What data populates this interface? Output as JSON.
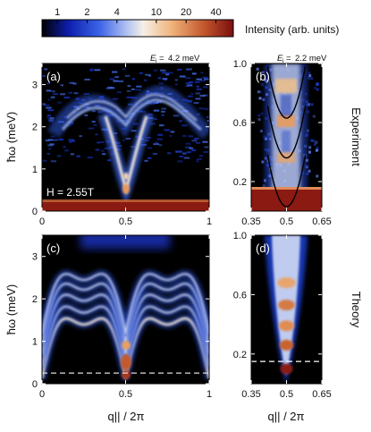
{
  "colorbar": {
    "ticks": [
      "1",
      "2",
      "4",
      "10",
      "20",
      "40"
    ],
    "tick_values": [
      1,
      2,
      4,
      10,
      20,
      40
    ],
    "range": [
      0.7,
      60
    ],
    "scale": "log",
    "label": "Intensity (arb. units)",
    "colors": [
      "#000000",
      "#0d1fae",
      "#3b63e6",
      "#b6c6f2",
      "#f6efe6",
      "#f0b27a",
      "#c2552c",
      "#7a0e0e"
    ]
  },
  "row_labels": [
    "Experiment",
    "Theory"
  ],
  "chart_data": [
    {
      "type": "heatmap",
      "panel_label": "(a)",
      "annotations": [
        "Ei = 4.2 meV",
        "H = 2.55T"
      ],
      "ei_value": "4.2 meV",
      "field_label": "H = 2.55T",
      "xlabel": "q|| / 2π",
      "ylabel": "ħω (meV)",
      "xlim": [
        0,
        1
      ],
      "ylim": [
        0,
        3.5
      ],
      "xticks": [
        "0",
        "0.5",
        "1"
      ],
      "yticks": [
        "0",
        "1",
        "2",
        "3"
      ],
      "features": {
        "dispersion_minimum": {
          "q": 0.5,
          "energy": 0.3
        },
        "secondary_minima": [
          {
            "q": 0.15,
            "energy": 1.55
          },
          {
            "q": 0.85,
            "energy": 1.55
          }
        ],
        "maximum_near_zone_center": {
          "q": 0.35,
          "energy": 2.75
        },
        "elastic_line_energy": 0.1
      }
    },
    {
      "type": "heatmap",
      "panel_label": "(b)",
      "annotations": [
        "Ei = 2.2 meV"
      ],
      "ei_value": "2.2 meV",
      "xlabel": "q|| / 2π",
      "ylabel": "ħω (meV)",
      "xlim": [
        0.35,
        0.65
      ],
      "ylim": [
        0,
        1.0
      ],
      "xticks": [
        "0.35",
        "0.5",
        "0.65"
      ],
      "yticks": [
        "0.2",
        "0.6",
        "1.0"
      ],
      "ytick_values": [
        0.2,
        0.6,
        1.0
      ],
      "overlay_parabola_minima": [
        0.03,
        0.36,
        0.63
      ],
      "features": {
        "intensity_maxima_energies": [
          0.12,
          0.36,
          0.62,
          0.9
        ]
      }
    },
    {
      "type": "heatmap",
      "panel_label": "(c)",
      "xlabel": "q|| / 2π",
      "ylabel": "ħω (meV)",
      "xlim": [
        0,
        1
      ],
      "ylim": [
        0,
        3.5
      ],
      "xticks": [
        "0",
        "0.5",
        "1"
      ],
      "yticks": [
        "0",
        "1",
        "2",
        "3"
      ],
      "dashed_line_energy": 0.25,
      "features": {
        "dispersion_minimum": {
          "q": 0.5,
          "energy": 0.1
        },
        "band_count": 5
      }
    },
    {
      "type": "heatmap",
      "panel_label": "(d)",
      "xlabel": "q|| / 2π",
      "ylabel": "ħω (meV)",
      "xlim": [
        0.35,
        0.65
      ],
      "ylim": [
        0,
        1.0
      ],
      "xticks": [
        "0.35",
        "0.5",
        "0.65"
      ],
      "yticks": [
        "0.2",
        "0.6",
        "1.0"
      ],
      "ytick_values": [
        0.2,
        0.6,
        1.0
      ],
      "dashed_line_energy": 0.15,
      "features": {
        "intensity_maxima_energies": [
          0.1,
          0.26,
          0.39,
          0.53,
          0.68
        ]
      }
    }
  ],
  "axis_titles": {
    "y_left_top": "ħω (meV)",
    "y_left_bottom": "ħω (meV)",
    "x_left": "q|| / 2π",
    "x_right": "q|| / 2π"
  }
}
